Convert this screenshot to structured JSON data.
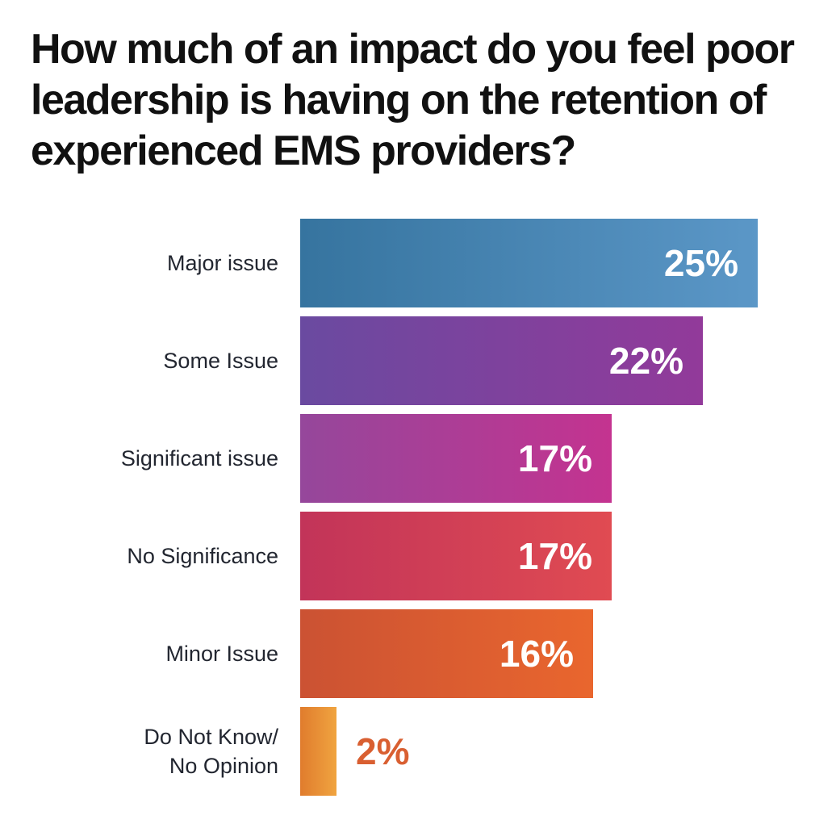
{
  "chart_data": {
    "type": "bar",
    "orientation": "horizontal",
    "title": "How much of an impact do you feel poor leadership is having on the retention of experienced EMS providers?",
    "title_lines": [
      "How much of an impact do you feel poor",
      "leadership is having on the retention of",
      "experienced EMS providers?"
    ],
    "xlabel": "",
    "ylabel": "",
    "xlim": [
      0,
      25
    ],
    "grid": false,
    "legend": false,
    "value_unit": "%",
    "categories": [
      "Major issue",
      "Some Issue",
      "Significant issue",
      "No Significance",
      "Minor Issue",
      "Do Not Know/ No Opinion"
    ],
    "values": [
      25,
      22,
      17,
      17,
      16,
      2
    ],
    "colors": {
      "title_text": "#111111",
      "category_text": "#222630",
      "value_text_inside": "#ffffff",
      "value_text_outside": "#d95f31",
      "background": "#ffffff"
    },
    "rows": [
      {
        "label": "Major issue",
        "label_lines": [
          "Major issue"
        ],
        "value": 25,
        "value_label": "25%",
        "gradient_start": "#36749f",
        "gradient_end": "#5b97c7",
        "value_label_position": "inside",
        "value_label_color": "#ffffff"
      },
      {
        "label": "Some Issue",
        "label_lines": [
          "Some Issue"
        ],
        "value": 22,
        "value_label": "22%",
        "gradient_start": "#6a4aa0",
        "gradient_end": "#923a9a",
        "value_label_position": "inside",
        "value_label_color": "#ffffff"
      },
      {
        "label": "Significant issue",
        "label_lines": [
          "Significant issue"
        ],
        "value": 17,
        "value_label": "17%",
        "gradient_start": "#95479b",
        "gradient_end": "#c43390",
        "value_label_position": "inside",
        "value_label_color": "#ffffff"
      },
      {
        "label": "No Significance",
        "label_lines": [
          "No Significance"
        ],
        "value": 17,
        "value_label": "17%",
        "gradient_start": "#c23459",
        "gradient_end": "#e04b52",
        "value_label_position": "inside",
        "value_label_color": "#ffffff"
      },
      {
        "label": "Minor Issue",
        "label_lines": [
          "Minor Issue"
        ],
        "value": 16,
        "value_label": "16%",
        "gradient_start": "#cb5233",
        "gradient_end": "#e9662e",
        "value_label_position": "inside",
        "value_label_color": "#ffffff"
      },
      {
        "label": "Do Not Know/ No Opinion",
        "label_lines": [
          "Do Not Know/",
          "No Opinion"
        ],
        "value": 2,
        "value_label": "2%",
        "gradient_start": "#e07c2d",
        "gradient_end": "#f0a440",
        "value_label_position": "outside",
        "value_label_color": "#d95f31"
      }
    ]
  }
}
